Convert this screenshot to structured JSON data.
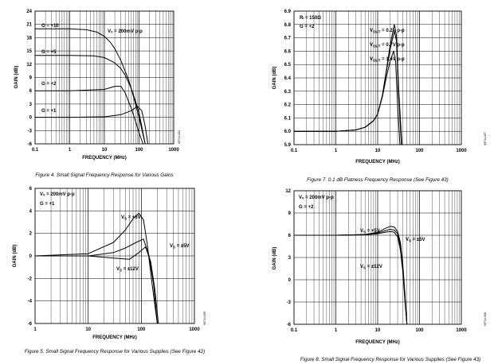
{
  "chart_data": [
    {
      "type": "line",
      "caption": "Figure 4. Small Signal Frequency Response for Various Gains",
      "side_code": "09714-003",
      "xlabel": "FREQUENCY (MHz)",
      "ylabel": "GAIN (dB)",
      "xscale": "log",
      "xlim": [
        0.1,
        1000
      ],
      "ylim": [
        -6,
        24
      ],
      "xticks": [
        "0.1",
        "1",
        "10",
        "100",
        "1000"
      ],
      "yticks": [
        "24",
        "21",
        "18",
        "15",
        "12",
        "9",
        "6",
        "3",
        "0",
        "-3",
        "-6"
      ],
      "annotations": [
        "Vₒ = 200mV p-p"
      ],
      "series": [
        {
          "name": "G = +10",
          "label": "G = +10",
          "x": [
            0.1,
            1,
            3,
            6,
            10,
            15,
            20,
            30,
            50,
            70,
            100,
            150
          ],
          "y": [
            20,
            20,
            19.8,
            19.3,
            18.3,
            16.9,
            15.5,
            12.8,
            8.5,
            4.5,
            0,
            -6
          ]
        },
        {
          "name": "G = +5",
          "label": "G = +5",
          "x": [
            0.1,
            1,
            5,
            10,
            20,
            30,
            40,
            60,
            80,
            100,
            150
          ],
          "y": [
            14,
            14,
            13.9,
            13.5,
            12.3,
            11,
            9.5,
            6.5,
            3.5,
            1,
            -6
          ]
        },
        {
          "name": "G = +2",
          "label": "G = +2",
          "x": [
            0.1,
            1,
            10,
            20,
            30,
            40,
            60,
            80,
            100,
            130
          ],
          "y": [
            6,
            6,
            6.3,
            7,
            7,
            5.5,
            2,
            -1,
            -3.5,
            -6
          ]
        },
        {
          "name": "G = +1",
          "label": "G = +1",
          "x": [
            0.1,
            1,
            10,
            30,
            60,
            90,
            120,
            150,
            180
          ],
          "y": [
            0,
            0,
            0.1,
            0.6,
            1.5,
            2.5,
            1.5,
            -2,
            -6
          ]
        }
      ]
    },
    {
      "type": "line",
      "caption": "Figure 7. 0.1 dB Flatness Frequency Response (See Figure 43)",
      "side_code": "09714-007",
      "xlabel": "FREQUENCY (MHz)",
      "ylabel": "GAIN (dB)",
      "xscale": "log",
      "xlim": [
        0.1,
        1000
      ],
      "ylim": [
        5.9,
        6.9
      ],
      "xticks": [
        "0.1",
        "1",
        "10",
        "100",
        "1000"
      ],
      "yticks": [
        "6.9",
        "6.8",
        "6.7",
        "6.6",
        "6.5",
        "6.4",
        "6.3",
        "6.2",
        "6.1",
        "6.0",
        "5.9"
      ],
      "annotations": [
        "Rₗ = 150Ω",
        "G = +2"
      ],
      "series": [
        {
          "name": "V_OUT = 0.2V p-p",
          "label_main": "V",
          "label_sub": "OUT",
          "label_rest": " = 0.2V p-p",
          "x": [
            0.1,
            1,
            3,
            5,
            8,
            10,
            13,
            16,
            20,
            25,
            28,
            32,
            38
          ],
          "y": [
            6.0,
            6.0,
            6.01,
            6.03,
            6.08,
            6.13,
            6.27,
            6.45,
            6.65,
            6.8,
            6.72,
            6.3,
            5.9
          ]
        },
        {
          "name": "V_OUT = 0.7V p-p",
          "label_main": "V",
          "label_sub": "OUT",
          "label_rest": " = 0.7V p-p",
          "x": [
            0.1,
            1,
            3,
            5,
            8,
            10,
            13,
            16,
            20,
            25,
            28,
            32,
            37
          ],
          "y": [
            6.0,
            6.0,
            6.01,
            6.03,
            6.08,
            6.13,
            6.27,
            6.44,
            6.62,
            6.75,
            6.68,
            6.25,
            5.9
          ]
        },
        {
          "name": "V_OUT = 1.4V p-p",
          "label_main": "V",
          "label_sub": "OUT",
          "label_rest": " = 1.4V p-p",
          "x": [
            0.1,
            1,
            3,
            5,
            8,
            10,
            13,
            16,
            20,
            24,
            27,
            30,
            34
          ],
          "y": [
            6.0,
            6.0,
            6.01,
            6.03,
            6.08,
            6.13,
            6.26,
            6.4,
            6.53,
            6.6,
            6.52,
            6.2,
            5.9
          ]
        }
      ]
    },
    {
      "type": "line",
      "caption": "Figure 5. Small Signal Frequency Response for Various Supplies (See Figure 42)",
      "side_code": "09714-005",
      "xlabel": "FREQUENCY (MHz)",
      "ylabel": "GAIN (dB)",
      "xscale": "log",
      "xlim": [
        1,
        1000
      ],
      "ylim": [
        -6,
        6
      ],
      "xticks": [
        "1",
        "10",
        "100",
        "1000"
      ],
      "yticks": [
        "6",
        "4",
        "2",
        "0",
        "-2",
        "-4",
        "-6"
      ],
      "annotations": [
        "Vₒ = 200mV p-p",
        "G = +1"
      ],
      "series": [
        {
          "name": "V_S = +5V",
          "label_main": "V",
          "label_sub": "S",
          "label_rest": " = +5V",
          "x": [
            1,
            10,
            30,
            50,
            70,
            90,
            110,
            130,
            160,
            200
          ],
          "y": [
            0,
            0.2,
            1.2,
            2.3,
            3.3,
            3.8,
            3.2,
            1,
            -2.5,
            -6
          ]
        },
        {
          "name": "V_S = ±5V",
          "label_main": "V",
          "label_sub": "S",
          "label_rest": " = ±5V",
          "x": [
            1,
            10,
            30,
            50,
            80,
            110,
            140,
            170,
            200
          ],
          "y": [
            0,
            0,
            0.3,
            0.7,
            1.2,
            1.5,
            0,
            -2.5,
            -6
          ]
        },
        {
          "name": "V_S = ±12V",
          "label_main": "V",
          "label_sub": "S",
          "label_rest": " = ±12V",
          "x": [
            1,
            10,
            30,
            60,
            90,
            120,
            150,
            180,
            210
          ],
          "y": [
            0,
            0,
            -0.2,
            -0.3,
            0.3,
            0.8,
            -0.5,
            -3,
            -6
          ]
        }
      ]
    },
    {
      "type": "line",
      "caption": "Figure 8. Small Signal Frequency Response for Various Supplies (See Figure 43)",
      "side_code": "09714-008",
      "xlabel": "FREQUENCY (MHz)",
      "ylabel": "GAIN (dB)",
      "xscale": "log",
      "xlim": [
        0.1,
        1000
      ],
      "ylim": [
        -6,
        12
      ],
      "xticks": [
        "0.1",
        "1",
        "10",
        "100",
        "1000"
      ],
      "yticks": [
        "12",
        "9",
        "6",
        "3",
        "0",
        "-3",
        "-6"
      ],
      "annotations": [
        "Vₒ = 200mV p-p",
        "G = +2"
      ],
      "series": [
        {
          "name": "V_S = +5V",
          "label_main": "V",
          "label_sub": "S",
          "label_rest": " = +5V",
          "x": [
            0.1,
            1,
            5,
            10,
            15,
            20,
            25,
            30,
            35,
            40,
            45,
            50
          ],
          "y": [
            6,
            6,
            6.1,
            6.4,
            6.9,
            7.2,
            7.1,
            6.5,
            5,
            2,
            -2,
            -6
          ]
        },
        {
          "name": "V_S = ±5V",
          "label_main": "V",
          "label_sub": "S",
          "label_rest": " = ±5V",
          "x": [
            0.1,
            1,
            5,
            10,
            15,
            20,
            25,
            30,
            35,
            40,
            45,
            50
          ],
          "y": [
            6,
            6,
            6.1,
            6.3,
            6.6,
            6.8,
            6.7,
            6.2,
            4.5,
            1.5,
            -2.5,
            -6
          ]
        },
        {
          "name": "V_S = ±12V",
          "label_main": "V",
          "label_sub": "S",
          "label_rest": " = ±12V",
          "x": [
            0.1,
            1,
            5,
            10,
            15,
            20,
            25,
            30,
            35,
            40,
            45,
            50
          ],
          "y": [
            6,
            6,
            6.05,
            6.2,
            6.4,
            6.5,
            6.4,
            5.8,
            4,
            1,
            -3,
            -6
          ]
        }
      ]
    }
  ]
}
